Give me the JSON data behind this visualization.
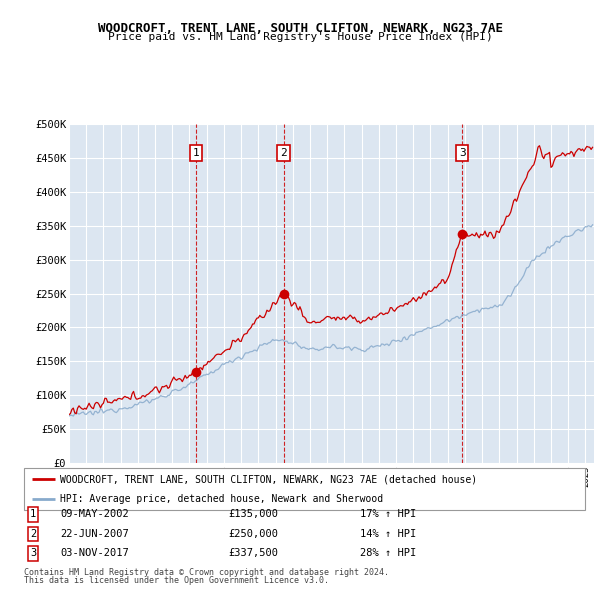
{
  "title": "WOODCROFT, TRENT LANE, SOUTH CLIFTON, NEWARK, NG23 7AE",
  "subtitle": "Price paid vs. HM Land Registry's House Price Index (HPI)",
  "xlim_start": 1995.0,
  "xlim_end": 2025.5,
  "ylim": [
    0,
    500000
  ],
  "yticks": [
    0,
    50000,
    100000,
    150000,
    200000,
    250000,
    300000,
    350000,
    400000,
    450000,
    500000
  ],
  "ytick_labels": [
    "£0",
    "£50K",
    "£100K",
    "£150K",
    "£200K",
    "£250K",
    "£300K",
    "£350K",
    "£400K",
    "£450K",
    "£500K"
  ],
  "sales": [
    {
      "date_num": 2002.36,
      "price": 135000,
      "label": "1"
    },
    {
      "date_num": 2007.47,
      "price": 250000,
      "label": "2"
    },
    {
      "date_num": 2017.84,
      "price": 337500,
      "label": "3"
    }
  ],
  "sale_info": [
    {
      "num": "1",
      "date": "09-MAY-2002",
      "price": "£135,000",
      "hpi": "17% ↑ HPI"
    },
    {
      "num": "2",
      "date": "22-JUN-2007",
      "price": "£250,000",
      "hpi": "14% ↑ HPI"
    },
    {
      "num": "3",
      "date": "03-NOV-2017",
      "price": "£337,500",
      "hpi": "28% ↑ HPI"
    }
  ],
  "legend_line1": "WOODCROFT, TRENT LANE, SOUTH CLIFTON, NEWARK, NG23 7AE (detached house)",
  "legend_line2": "HPI: Average price, detached house, Newark and Sherwood",
  "footer1": "Contains HM Land Registry data © Crown copyright and database right 2024.",
  "footer2": "This data is licensed under the Open Government Licence v3.0.",
  "red_color": "#cc0000",
  "blue_color": "#88aacc",
  "bg_color": "#dce6f1",
  "grid_color": "#ffffff",
  "vline_color": "#cc0000",
  "box_color": "#cc0000",
  "hpi_anchors": [
    [
      1995.0,
      70000
    ],
    [
      1996.0,
      73000
    ],
    [
      1997.0,
      76000
    ],
    [
      1998.0,
      81000
    ],
    [
      1999.0,
      87000
    ],
    [
      2000.0,
      94000
    ],
    [
      2001.0,
      105000
    ],
    [
      2002.0,
      115000
    ],
    [
      2003.0,
      130000
    ],
    [
      2004.0,
      145000
    ],
    [
      2005.0,
      158000
    ],
    [
      2006.0,
      170000
    ],
    [
      2007.0,
      182000
    ],
    [
      2008.0,
      178000
    ],
    [
      2009.0,
      165000
    ],
    [
      2010.0,
      172000
    ],
    [
      2011.0,
      170000
    ],
    [
      2012.0,
      168000
    ],
    [
      2013.0,
      172000
    ],
    [
      2014.0,
      180000
    ],
    [
      2015.0,
      190000
    ],
    [
      2016.0,
      200000
    ],
    [
      2017.0,
      210000
    ],
    [
      2018.0,
      220000
    ],
    [
      2019.0,
      228000
    ],
    [
      2020.0,
      230000
    ],
    [
      2021.0,
      260000
    ],
    [
      2022.0,
      300000
    ],
    [
      2023.0,
      320000
    ],
    [
      2024.0,
      335000
    ],
    [
      2025.3,
      350000
    ]
  ],
  "red_anchors": [
    [
      1995.0,
      78000
    ],
    [
      1996.0,
      82000
    ],
    [
      1997.0,
      87000
    ],
    [
      1998.0,
      93000
    ],
    [
      1999.0,
      99000
    ],
    [
      2000.0,
      107000
    ],
    [
      2001.0,
      118000
    ],
    [
      2002.36,
      135000
    ],
    [
      2003.0,
      148000
    ],
    [
      2004.0,
      165000
    ],
    [
      2005.0,
      185000
    ],
    [
      2006.0,
      210000
    ],
    [
      2007.47,
      250000
    ],
    [
      2008.0,
      238000
    ],
    [
      2009.0,
      205000
    ],
    [
      2010.0,
      215000
    ],
    [
      2011.0,
      212000
    ],
    [
      2012.0,
      210000
    ],
    [
      2013.0,
      218000
    ],
    [
      2014.0,
      228000
    ],
    [
      2015.0,
      240000
    ],
    [
      2016.0,
      255000
    ],
    [
      2017.0,
      270000
    ],
    [
      2017.84,
      337500
    ],
    [
      2018.0,
      340000
    ],
    [
      2019.0,
      335000
    ],
    [
      2020.0,
      340000
    ],
    [
      2021.0,
      390000
    ],
    [
      2021.5,
      420000
    ],
    [
      2022.0,
      440000
    ],
    [
      2022.3,
      470000
    ],
    [
      2022.6,
      450000
    ],
    [
      2022.9,
      460000
    ],
    [
      2023.0,
      435000
    ],
    [
      2023.3,
      450000
    ],
    [
      2023.6,
      455000
    ],
    [
      2024.0,
      455000
    ],
    [
      2024.5,
      460000
    ],
    [
      2025.3,
      465000
    ]
  ]
}
